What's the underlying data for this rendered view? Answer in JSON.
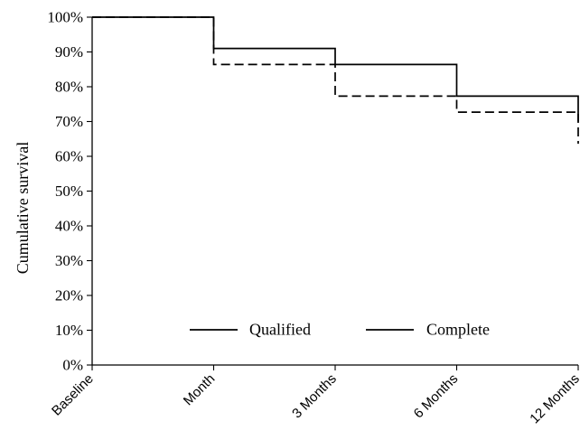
{
  "chart_data": {
    "type": "line",
    "title": "",
    "xlabel": "",
    "ylabel": "Cumulative survival",
    "categories": [
      "Baseline",
      "Month",
      "3 Months",
      "6 Months",
      "12 Months"
    ],
    "series": [
      {
        "name": "Qualified",
        "values": [
          100,
          91,
          86.4,
          77.3,
          70
        ],
        "line_style": "solid"
      },
      {
        "name": "Complete",
        "values": [
          100,
          86.4,
          77.3,
          72.7,
          63.6
        ],
        "line_style": "dashed"
      }
    ],
    "step_type": "kaplan-meier",
    "ylim": [
      0,
      100
    ],
    "yticks": [
      0,
      10,
      20,
      30,
      40,
      50,
      60,
      70,
      80,
      90,
      100
    ],
    "ytick_labels": [
      "0%",
      "10%",
      "20%",
      "30%",
      "40%",
      "50%",
      "60%",
      "70%",
      "80%",
      "90%",
      "100%"
    ],
    "grid": false,
    "legend_position": "bottom-center",
    "colors": {
      "axis": "#000000",
      "line": "#000000",
      "background": "#ffffff"
    }
  }
}
